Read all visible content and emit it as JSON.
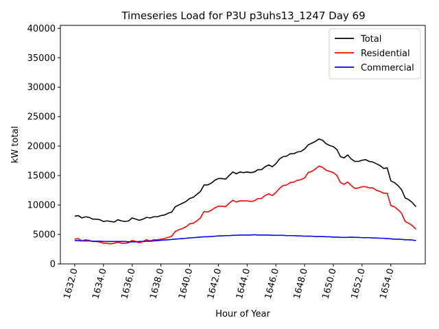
{
  "chart_data": {
    "type": "line",
    "title": "Timeseries Load for P3U p3uhs13_1247  Day 69",
    "xlabel": "Hour of Year",
    "ylabel": "kW total",
    "xlim": [
      1631.0,
      1656.4
    ],
    "ylim": [
      0,
      40500
    ],
    "xticks": [
      1632,
      1634,
      1636,
      1638,
      1640,
      1642,
      1644,
      1646,
      1648,
      1650,
      1652,
      1654
    ],
    "xtick_labels": [
      "1632.0",
      "1634.0",
      "1636.0",
      "1638.0",
      "1640.0",
      "1642.0",
      "1644.0",
      "1646.0",
      "1648.0",
      "1650.0",
      "1652.0",
      "1654.0"
    ],
    "yticks": [
      0,
      5000,
      10000,
      15000,
      20000,
      25000,
      30000,
      35000,
      40000
    ],
    "ytick_labels": [
      "0",
      "5000",
      "10000",
      "15000",
      "20000",
      "25000",
      "30000",
      "35000",
      "40000"
    ],
    "legend_position": "top-right",
    "x": [
      1632.0,
      1632.25,
      1632.5,
      1632.75,
      1633.0,
      1633.25,
      1633.5,
      1633.75,
      1634.0,
      1634.25,
      1634.5,
      1634.75,
      1635.0,
      1635.25,
      1635.5,
      1635.75,
      1636.0,
      1636.25,
      1636.5,
      1636.75,
      1637.0,
      1637.25,
      1637.5,
      1637.75,
      1638.0,
      1638.25,
      1638.5,
      1638.75,
      1639.0,
      1639.25,
      1639.5,
      1639.75,
      1640.0,
      1640.25,
      1640.5,
      1640.75,
      1641.0,
      1641.25,
      1641.5,
      1641.75,
      1642.0,
      1642.25,
      1642.5,
      1642.75,
      1643.0,
      1643.25,
      1643.5,
      1643.75,
      1644.0,
      1644.25,
      1644.5,
      1644.75,
      1645.0,
      1645.25,
      1645.5,
      1645.75,
      1646.0,
      1646.25,
      1646.5,
      1646.75,
      1647.0,
      1647.25,
      1647.5,
      1647.75,
      1648.0,
      1648.25,
      1648.5,
      1648.75,
      1649.0,
      1649.25,
      1649.5,
      1649.75,
      1650.0,
      1650.25,
      1650.5,
      1650.75,
      1651.0,
      1651.25,
      1651.5,
      1651.75,
      1652.0,
      1652.25,
      1652.5,
      1652.75,
      1653.0,
      1653.25,
      1653.5,
      1653.75,
      1654.0,
      1654.25,
      1654.5,
      1654.75,
      1655.0,
      1655.25,
      1655.5,
      1655.75
    ],
    "series": [
      {
        "name": "Total",
        "color": "#000000",
        "values": [
          8100,
          8200,
          7800,
          8000,
          7900,
          7600,
          7600,
          7500,
          7200,
          7300,
          7200,
          7100,
          7500,
          7300,
          7200,
          7300,
          7800,
          7600,
          7400,
          7600,
          7900,
          7800,
          8000,
          8000,
          8200,
          8300,
          8600,
          8800,
          9700,
          10000,
          10300,
          10600,
          11100,
          11300,
          11800,
          12300,
          13400,
          13400,
          13700,
          14200,
          14500,
          14500,
          14400,
          15000,
          15600,
          15300,
          15600,
          15500,
          15600,
          15500,
          15600,
          16000,
          16000,
          16500,
          16800,
          16500,
          17000,
          17800,
          18200,
          18300,
          18700,
          18700,
          19000,
          19100,
          19500,
          20200,
          20500,
          20800,
          21200,
          21000,
          20400,
          20100,
          19900,
          19400,
          18200,
          18000,
          18500,
          17800,
          17400,
          17400,
          17600,
          17700,
          17400,
          17300,
          17000,
          16700,
          16200,
          16300,
          14100,
          13800,
          13300,
          12600,
          11200,
          10900,
          10400,
          9700
        ]
      },
      {
        "name": "Residential",
        "color": "#ff0000",
        "values": [
          4200,
          4300,
          3900,
          4100,
          4000,
          3800,
          3800,
          3700,
          3500,
          3500,
          3400,
          3500,
          3700,
          3500,
          3500,
          3600,
          4000,
          3800,
          3600,
          3800,
          4100,
          3900,
          4100,
          4100,
          4200,
          4300,
          4500,
          4700,
          5500,
          5800,
          6000,
          6300,
          6800,
          6900,
          7300,
          7800,
          8900,
          8800,
          9100,
          9500,
          9800,
          9800,
          9700,
          10300,
          10800,
          10500,
          10700,
          10700,
          10700,
          10600,
          10700,
          11100,
          11100,
          11600,
          11900,
          11600,
          12100,
          12800,
          13300,
          13400,
          13800,
          13900,
          14200,
          14300,
          14600,
          15500,
          15700,
          16100,
          16600,
          16400,
          15900,
          15700,
          15500,
          15000,
          13800,
          13500,
          13900,
          13300,
          12800,
          12900,
          13100,
          13100,
          12900,
          12900,
          12500,
          12300,
          12000,
          12000,
          9900,
          9700,
          9200,
          8600,
          7200,
          6900,
          6500,
          5900
        ]
      },
      {
        "name": "Commercial",
        "color": "#0000ff",
        "values": [
          3950,
          3950,
          3900,
          3900,
          3900,
          3850,
          3850,
          3850,
          3800,
          3800,
          3800,
          3800,
          3800,
          3800,
          3800,
          3750,
          3750,
          3750,
          3800,
          3800,
          3850,
          3850,
          3900,
          3950,
          4000,
          4050,
          4100,
          4150,
          4200,
          4250,
          4300,
          4350,
          4400,
          4450,
          4500,
          4550,
          4600,
          4600,
          4650,
          4700,
          4750,
          4750,
          4800,
          4800,
          4850,
          4850,
          4900,
          4900,
          4900,
          4900,
          4950,
          4900,
          4900,
          4900,
          4900,
          4850,
          4850,
          4850,
          4850,
          4800,
          4800,
          4800,
          4750,
          4750,
          4700,
          4700,
          4700,
          4650,
          4650,
          4650,
          4600,
          4600,
          4550,
          4550,
          4500,
          4500,
          4500,
          4550,
          4500,
          4500,
          4450,
          4450,
          4450,
          4400,
          4400,
          4350,
          4350,
          4300,
          4250,
          4200,
          4200,
          4150,
          4100,
          4100,
          4050,
          3950
        ]
      }
    ]
  }
}
